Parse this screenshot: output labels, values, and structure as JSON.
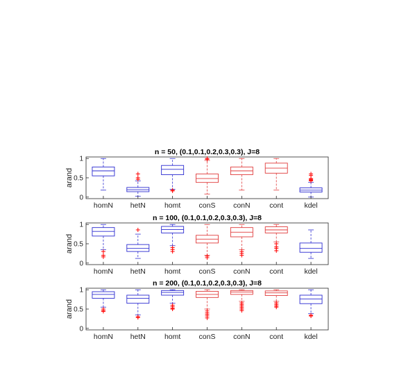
{
  "colors": {
    "model": "#2b2bd0",
    "control": "#e03b3b",
    "outlier": "#ff0000",
    "axis": "#262626"
  },
  "chart_data": [
    {
      "type": "box",
      "title": "n = 50, (0.1,0.1,0.2,0.3,0.3), J=8",
      "ylabel": "arand",
      "ylim": [
        0,
        1
      ],
      "yticks": [
        "0",
        "0.5",
        "1"
      ],
      "categories": [
        "homN",
        "hetN",
        "homt",
        "conS",
        "conN",
        "cont",
        "kdel"
      ],
      "box_colors": [
        "model",
        "model",
        "model",
        "control",
        "control",
        "control",
        "model"
      ],
      "boxes": [
        {
          "min": 0.18,
          "q1": 0.55,
          "median": 0.68,
          "q3": 0.78,
          "max": 1.0,
          "outliers": []
        },
        {
          "min": 0.02,
          "q1": 0.14,
          "median": 0.19,
          "q3": 0.25,
          "max": 0.42,
          "outliers": [
            0.46,
            0.5,
            0.6
          ]
        },
        {
          "min": 0.2,
          "q1": 0.58,
          "median": 0.72,
          "q3": 0.82,
          "max": 1.0,
          "outliers": [
            0.18,
            0.16
          ]
        },
        {
          "min": 0.08,
          "q1": 0.38,
          "median": 0.48,
          "q3": 0.6,
          "max": 0.95,
          "outliers": [
            1.0,
            0.98
          ]
        },
        {
          "min": 0.18,
          "q1": 0.58,
          "median": 0.68,
          "q3": 0.78,
          "max": 1.0,
          "outliers": []
        },
        {
          "min": 0.18,
          "q1": 0.62,
          "median": 0.75,
          "q3": 0.88,
          "max": 1.0,
          "outliers": []
        },
        {
          "min": 0.0,
          "q1": 0.13,
          "median": 0.18,
          "q3": 0.24,
          "max": 0.38,
          "outliers": [
            0.42,
            0.44,
            0.46,
            0.48,
            0.56,
            0.6
          ]
        }
      ]
    },
    {
      "type": "box",
      "title": "n = 100, (0.1,0.1,0.2,0.3,0.3), J=8",
      "ylabel": "arand",
      "ylim": [
        0,
        1
      ],
      "yticks": [
        "0",
        "0.5",
        "1"
      ],
      "categories": [
        "homN",
        "hetN",
        "homt",
        "conS",
        "conN",
        "cont",
        "kdel"
      ],
      "box_colors": [
        "model",
        "model",
        "model",
        "control",
        "control",
        "control",
        "model"
      ],
      "boxes": [
        {
          "min": 0.35,
          "q1": 0.7,
          "median": 0.82,
          "q3": 0.92,
          "max": 1.0,
          "outliers": [
            0.3,
            0.2,
            0.16
          ]
        },
        {
          "min": 0.12,
          "q1": 0.3,
          "median": 0.38,
          "q3": 0.48,
          "max": 0.75,
          "outliers": [
            0.86
          ]
        },
        {
          "min": 0.45,
          "q1": 0.78,
          "median": 0.87,
          "q3": 0.95,
          "max": 1.0,
          "outliers": [
            0.4,
            0.35,
            0.3
          ]
        },
        {
          "min": 0.2,
          "q1": 0.52,
          "median": 0.62,
          "q3": 0.72,
          "max": 1.0,
          "outliers": [
            0.18,
            0.14
          ]
        },
        {
          "min": 0.35,
          "q1": 0.68,
          "median": 0.8,
          "q3": 0.92,
          "max": 1.0,
          "outliers": [
            0.3,
            0.25,
            0.2
          ]
        },
        {
          "min": 0.55,
          "q1": 0.78,
          "median": 0.86,
          "q3": 0.94,
          "max": 1.0,
          "outliers": [
            0.5,
            0.42,
            0.38,
            0.32
          ]
        },
        {
          "min": 0.12,
          "q1": 0.28,
          "median": 0.38,
          "q3": 0.52,
          "max": 0.86,
          "outliers": []
        }
      ]
    },
    {
      "type": "box",
      "title": "n = 200, (0.1,0.1,0.2,0.3,0.3), J=8",
      "ylabel": "arand",
      "ylim": [
        0,
        1
      ],
      "yticks": [
        "0",
        "0.5",
        "1"
      ],
      "categories": [
        "homN",
        "hetN",
        "homt",
        "conS",
        "conN",
        "cont",
        "kdel"
      ],
      "box_colors": [
        "model",
        "model",
        "model",
        "control",
        "control",
        "control",
        "model"
      ],
      "boxes": [
        {
          "min": 0.55,
          "q1": 0.78,
          "median": 0.88,
          "q3": 0.95,
          "max": 1.0,
          "outliers": [
            0.5,
            0.46,
            0.44
          ]
        },
        {
          "min": 0.35,
          "q1": 0.65,
          "median": 0.78,
          "q3": 0.86,
          "max": 1.0,
          "outliers": [
            0.3,
            0.28
          ]
        },
        {
          "min": 0.65,
          "q1": 0.86,
          "median": 0.93,
          "q3": 0.98,
          "max": 1.0,
          "outliers": [
            0.6,
            0.56,
            0.52,
            0.5
          ]
        },
        {
          "min": 0.5,
          "q1": 0.8,
          "median": 0.88,
          "q3": 0.96,
          "max": 1.0,
          "outliers": [
            0.45,
            0.4,
            0.36,
            0.32,
            0.27
          ]
        },
        {
          "min": 0.7,
          "q1": 0.88,
          "median": 0.94,
          "q3": 0.98,
          "max": 1.0,
          "outliers": [
            0.66,
            0.62,
            0.58,
            0.54,
            0.5,
            0.46
          ]
        },
        {
          "min": 0.7,
          "q1": 0.85,
          "median": 0.92,
          "q3": 0.97,
          "max": 1.0,
          "outliers": [
            0.66,
            0.62,
            0.58,
            0.55
          ]
        },
        {
          "min": 0.38,
          "q1": 0.64,
          "median": 0.76,
          "q3": 0.86,
          "max": 1.0,
          "outliers": [
            0.34,
            0.32
          ]
        }
      ]
    }
  ]
}
